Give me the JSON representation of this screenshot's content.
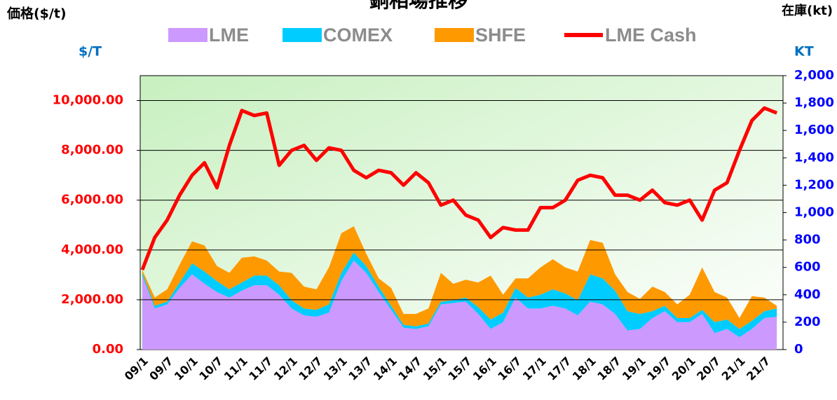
{
  "chart_data": {
    "type": "area",
    "title": "銅相場推移",
    "y_label": "価格($/t)",
    "y2_label": "在庫(kt)",
    "y_unit": "$/T",
    "y2_unit": "KT",
    "categories": [
      "09/1",
      null,
      "09/7",
      null,
      "10/1",
      null,
      "10/7",
      null,
      "11/1",
      null,
      "11/7",
      null,
      "12/1",
      null,
      "12/7",
      null,
      "13/1",
      null,
      "13/7",
      null,
      "14/1",
      null,
      "14/7",
      null,
      "15/1",
      null,
      "15/7",
      null,
      "16/1",
      null,
      "16/7",
      null,
      "17/1",
      null,
      "17/7",
      null,
      "18/1",
      null,
      "18/7",
      null,
      "19/1",
      null,
      "19/7",
      null,
      "20/1",
      null,
      "20/7",
      null,
      "21/1",
      null,
      "21/7",
      null
    ],
    "series": [
      {
        "name": "LME",
        "color": "#cc99ff",
        "axis": "y2",
        "stacked": true,
        "values": [
          540,
          300,
          330,
          450,
          550,
          480,
          420,
          380,
          430,
          470,
          470,
          400,
          300,
          250,
          240,
          270,
          500,
          650,
          560,
          420,
          290,
          160,
          150,
          170,
          330,
          340,
          350,
          260,
          150,
          200,
          380,
          300,
          300,
          320,
          300,
          250,
          350,
          330,
          260,
          140,
          150,
          230,
          280,
          200,
          200,
          260,
          120,
          150,
          90,
          150,
          230,
          240
        ]
      },
      {
        "name": "COMEX",
        "color": "#00ccff",
        "axis": "y2",
        "stacked": true,
        "values": [
          20,
          20,
          20,
          40,
          80,
          90,
          80,
          60,
          60,
          70,
          70,
          70,
          60,
          50,
          50,
          60,
          60,
          60,
          50,
          40,
          30,
          20,
          20,
          20,
          20,
          20,
          30,
          50,
          70,
          70,
          70,
          80,
          100,
          120,
          110,
          110,
          200,
          190,
          170,
          140,
          110,
          50,
          40,
          30,
          30,
          30,
          80,
          70,
          60,
          60,
          50,
          60
        ]
      },
      {
        "name": "SHFE",
        "color": "#ff9900",
        "axis": "y2",
        "stacked": true,
        "values": [
          20,
          60,
          90,
          130,
          160,
          190,
          110,
          120,
          180,
          140,
          110,
          100,
          200,
          160,
          150,
          270,
          290,
          190,
          90,
          60,
          130,
          80,
          90,
          110,
          210,
          120,
          130,
          180,
          320,
          130,
          70,
          140,
          200,
          220,
          190,
          210,
          250,
          260,
          120,
          140,
          110,
          180,
          100,
          100,
          170,
          310,
          220,
          160,
          80,
          180,
          100,
          20
        ]
      },
      {
        "name": "LME Cash",
        "color": "#ff0000",
        "type": "line",
        "values": [
          3200,
          4500,
          5200,
          6200,
          7000,
          7500,
          6500,
          8200,
          9600,
          9400,
          9500,
          7400,
          8000,
          8200,
          7600,
          8100,
          8000,
          7200,
          6900,
          7200,
          7100,
          6600,
          7100,
          6700,
          5800,
          6000,
          5400,
          5200,
          4500,
          4900,
          4800,
          4800,
          5700,
          5700,
          6000,
          6800,
          7000,
          6900,
          6200,
          6200,
          6000,
          6400,
          5900,
          5800,
          6000,
          5200,
          6400,
          6700,
          8000,
          9200,
          9700,
          9500
        ]
      }
    ],
    "ylim": [
      0,
      11000
    ],
    "yticks": [
      {
        "value": 0,
        "label": "0.00"
      },
      {
        "value": 2000,
        "label": "2,000.00"
      },
      {
        "value": 4000,
        "label": "4,000.00"
      },
      {
        "value": 6000,
        "label": "6,000.00"
      },
      {
        "value": 8000,
        "label": "8,000.00"
      },
      {
        "value": 10000,
        "label": "10,000.00"
      }
    ],
    "y2lim": [
      0,
      2000
    ],
    "y2ticks": [
      0,
      200,
      400,
      600,
      800,
      {
        "value": 1000,
        "label": "1,000"
      },
      {
        "value": 1200,
        "label": "1,200"
      },
      {
        "value": 1400,
        "label": "1,400"
      },
      {
        "value": 1600,
        "label": "1,600"
      },
      {
        "value": 1800,
        "label": "1,800"
      },
      {
        "value": 2000,
        "label": "2,000"
      }
    ],
    "grid": true,
    "legend": "top"
  }
}
